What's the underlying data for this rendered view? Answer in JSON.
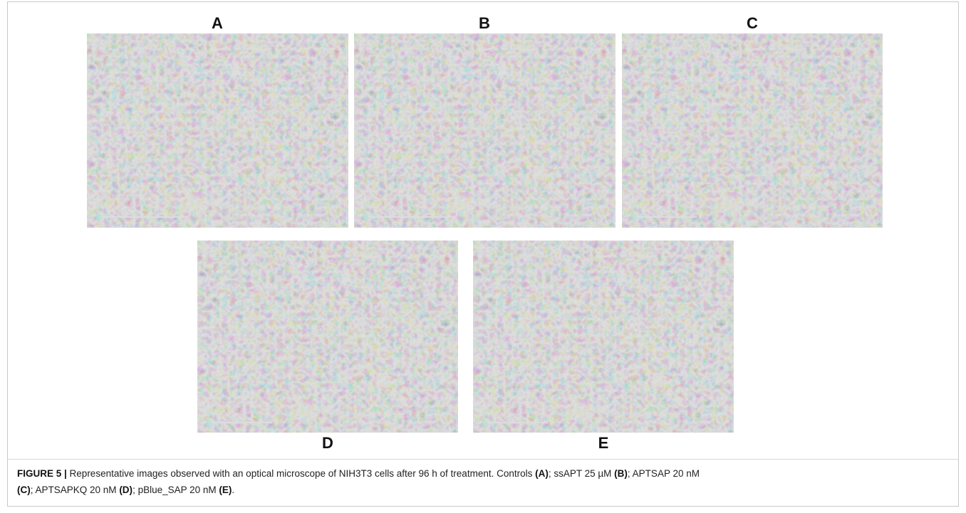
{
  "figure": {
    "panels": [
      {
        "label": "A"
      },
      {
        "label": "B"
      },
      {
        "label": "C"
      },
      {
        "label": "D"
      },
      {
        "label": "E"
      }
    ],
    "caption": {
      "label": "FIGURE 5 |",
      "line1": " Representative images observed with an optical microscope of NIH3T3 cells after 96 h of treatment. Controls ",
      "a": "(A)",
      "t_b": "; ssAPT 25 µM ",
      "b": "(B)",
      "t_c": "; APTSAP 20 nM",
      "c": "(C)",
      "t_d": "; APTSAPKQ 20 nM ",
      "d": "(D)",
      "t_e": "; pBlue_SAP 20 nM ",
      "e": "(E)",
      "end": "."
    }
  }
}
